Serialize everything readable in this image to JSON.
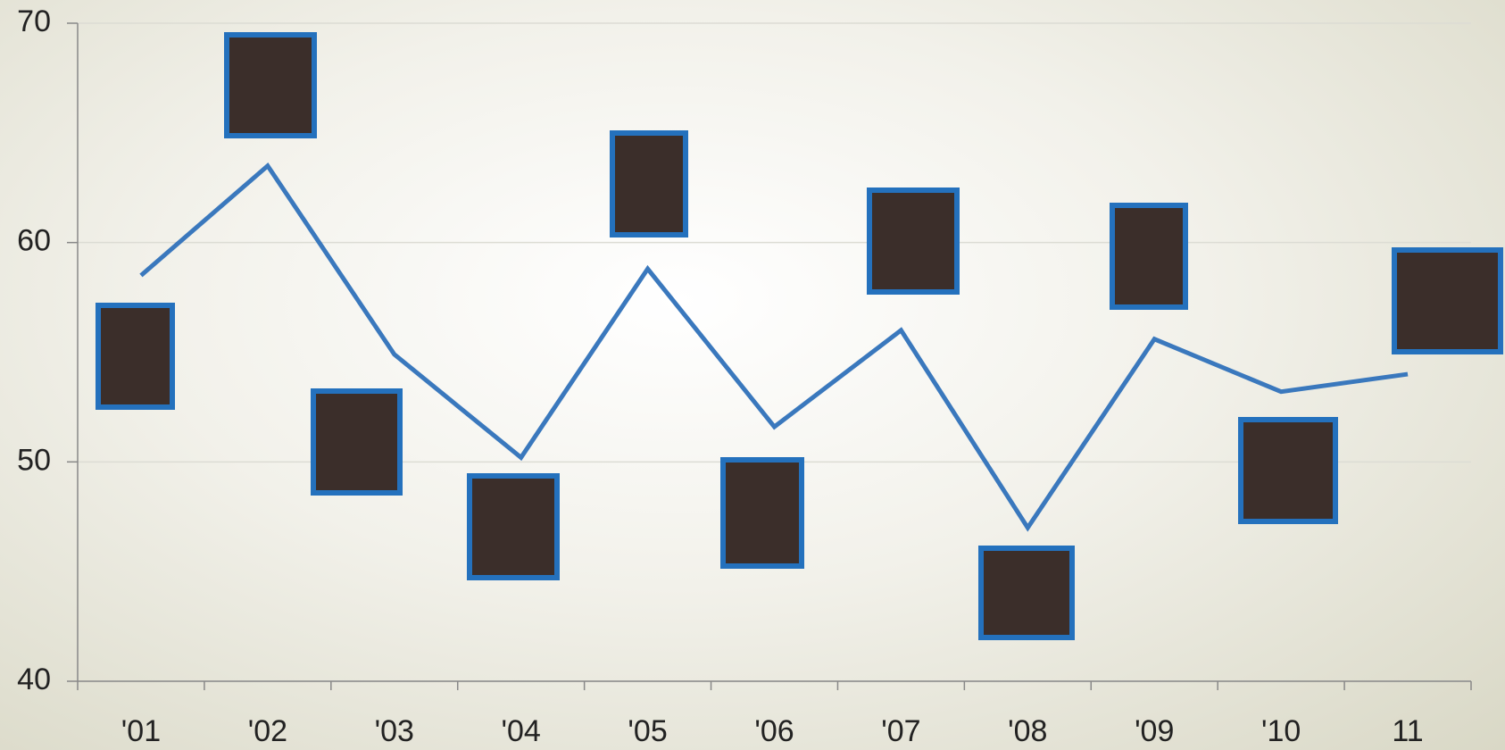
{
  "chart_data": {
    "type": "line",
    "categories": [
      "'01",
      "'02",
      "'03",
      "'04",
      "'05",
      "'06",
      "'07",
      "'08",
      "'09",
      "'10",
      "11"
    ],
    "series": [
      {
        "color": "#3a78bd",
        "values": [
          58.5,
          63.5,
          54.9,
          50.2,
          58.8,
          51.6,
          56.0,
          47.0,
          55.6,
          53.2,
          54.0
        ]
      }
    ],
    "ylim": [
      40,
      70
    ],
    "yticks": [
      40,
      50,
      60,
      70
    ],
    "grid": true
  }
}
